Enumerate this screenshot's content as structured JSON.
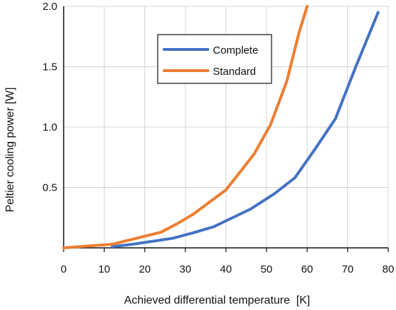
{
  "chart_data": {
    "type": "line",
    "title": "",
    "xlabel": "Achieved differential temperature  [K]",
    "ylabel": "Peltier cooling power [W]",
    "xlim": [
      0,
      80
    ],
    "ylim": [
      0,
      2.0
    ],
    "xticks": [
      0,
      10,
      20,
      30,
      40,
      50,
      60,
      70,
      80
    ],
    "xtick_labels": [
      "0",
      "10",
      "20",
      "30",
      "40",
      "50",
      "60",
      "70",
      "80"
    ],
    "yticks": [
      0.5,
      1.0,
      1.5,
      2.0
    ],
    "ytick_labels": [
      "0.5",
      "1.0",
      "1.5",
      "2.0"
    ],
    "grid": true,
    "legend_position": "top-center",
    "series": [
      {
        "name": "Complete",
        "color": "#4472C4",
        "x": [
          12,
          17,
          22,
          27,
          32,
          37,
          41,
          46,
          52,
          57,
          62,
          67,
          72,
          77.5
        ],
        "y": [
          0.01,
          0.03,
          0.055,
          0.08,
          0.125,
          0.175,
          0.24,
          0.32,
          0.45,
          0.58,
          0.82,
          1.07,
          1.5,
          1.95
        ]
      },
      {
        "name": "Standard",
        "color": "#ED7D31",
        "x": [
          0,
          6,
          12,
          18,
          24,
          28,
          32,
          36,
          40,
          44,
          47,
          51,
          55,
          58,
          60
        ],
        "y": [
          0,
          0.015,
          0.03,
          0.08,
          0.13,
          0.2,
          0.28,
          0.38,
          0.48,
          0.65,
          0.78,
          1.02,
          1.38,
          1.78,
          2.0
        ]
      }
    ]
  }
}
